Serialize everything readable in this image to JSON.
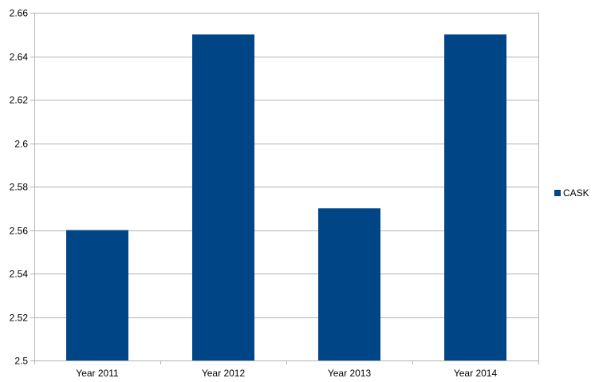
{
  "chart_data": {
    "type": "bar",
    "categories": [
      "Year 2011",
      "Year 2012",
      "Year 2013",
      "Year 2014"
    ],
    "series": [
      {
        "name": "CASK",
        "values": [
          2.56,
          2.65,
          2.57,
          2.65
        ],
        "color": "#004586"
      }
    ],
    "title": "",
    "xlabel": "",
    "ylabel": "",
    "ylim": [
      2.5,
      2.66
    ],
    "yticks": [
      "2.5",
      "2.52",
      "2.54",
      "2.56",
      "2.58",
      "2.6",
      "2.62",
      "2.64",
      "2.66"
    ],
    "grid": true,
    "legend": "right"
  }
}
